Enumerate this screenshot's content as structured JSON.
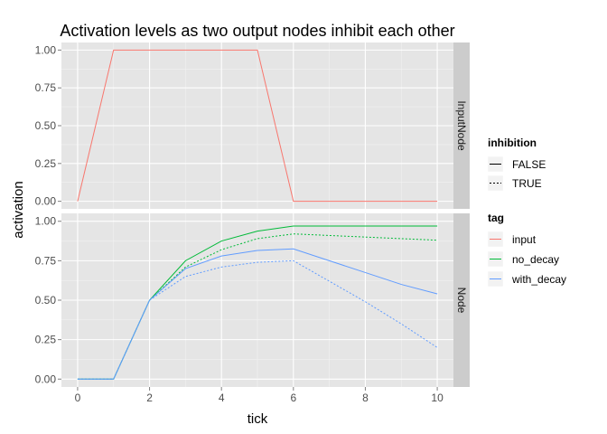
{
  "chart_data": {
    "type": "line",
    "title": "Activation levels as two output nodes inhibit each other",
    "xlabel": "tick",
    "ylabel": "activation",
    "xlim": [
      -0.45,
      10.45
    ],
    "ylim": [
      -0.05,
      1.05
    ],
    "x_ticks": [
      0,
      2,
      4,
      6,
      8,
      10
    ],
    "y_ticks": [
      0.0,
      0.25,
      0.5,
      0.75,
      1.0
    ],
    "x_tick_labels": [
      "0",
      "2",
      "4",
      "6",
      "8",
      "10"
    ],
    "y_tick_labels": [
      "0.00",
      "0.25",
      "0.50",
      "0.75",
      "1.00"
    ],
    "grid": true,
    "facets": [
      "InputNode",
      "Node"
    ],
    "colors": {
      "input": "#F8766D",
      "no_decay": "#00BA38",
      "with_decay": "#619CFF",
      "panel_bg": "#E5E5E5",
      "strip_bg": "#CCCCCC",
      "grid": "#FFFFFF"
    },
    "legend": {
      "position": "right",
      "inhibition": {
        "title": "inhibition",
        "entries": [
          {
            "label": "FALSE",
            "linetype": "solid"
          },
          {
            "label": "TRUE",
            "linetype": "dotted"
          }
        ]
      },
      "tag": {
        "title": "tag",
        "entries": [
          {
            "label": "input",
            "color": "#F8766D"
          },
          {
            "label": "no_decay",
            "color": "#00BA38"
          },
          {
            "label": "with_decay",
            "color": "#619CFF"
          }
        ]
      }
    },
    "series": [
      {
        "facet": "InputNode",
        "tag": "input",
        "inhibition": "FALSE",
        "x": [
          0,
          1,
          2,
          3,
          4,
          5,
          6,
          7,
          8,
          9,
          10
        ],
        "y": [
          0,
          1,
          1,
          1,
          1,
          1,
          0,
          0,
          0,
          0,
          0
        ]
      },
      {
        "facet": "Node",
        "tag": "no_decay",
        "inhibition": "FALSE",
        "x": [
          0,
          1,
          2,
          3,
          4,
          5,
          6,
          7,
          8,
          9,
          10
        ],
        "y": [
          0,
          0,
          0.5,
          0.75,
          0.875,
          0.9375,
          0.97,
          0.97,
          0.97,
          0.97,
          0.97
        ]
      },
      {
        "facet": "Node",
        "tag": "no_decay",
        "inhibition": "TRUE",
        "x": [
          0,
          1,
          2,
          3,
          4,
          5,
          6,
          7,
          8,
          9,
          10
        ],
        "y": [
          0,
          0,
          0.5,
          0.71,
          0.82,
          0.89,
          0.92,
          0.91,
          0.9,
          0.89,
          0.88
        ]
      },
      {
        "facet": "Node",
        "tag": "with_decay",
        "inhibition": "FALSE",
        "x": [
          0,
          1,
          2,
          3,
          4,
          5,
          6,
          7,
          8,
          9,
          10
        ],
        "y": [
          0,
          0,
          0.5,
          0.7,
          0.78,
          0.815,
          0.825,
          0.75,
          0.675,
          0.6,
          0.54
        ]
      },
      {
        "facet": "Node",
        "tag": "with_decay",
        "inhibition": "TRUE",
        "x": [
          0,
          1,
          2,
          3,
          4,
          5,
          6,
          7,
          8,
          9,
          10
        ],
        "y": [
          0,
          0,
          0.5,
          0.65,
          0.71,
          0.74,
          0.75,
          0.62,
          0.49,
          0.35,
          0.2
        ]
      }
    ]
  }
}
